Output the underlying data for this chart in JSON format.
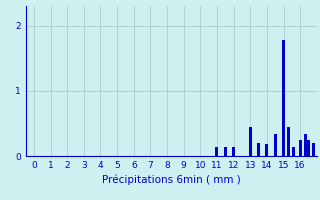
{
  "xlabel": "Précipitations 6min ( mm )",
  "background_color": "#cff0f0",
  "bar_color": "#0000cc",
  "grid_color": "#aacccc",
  "xlim": [
    -0.5,
    17.0
  ],
  "ylim": [
    0,
    2.3
  ],
  "yticks": [
    0,
    1,
    2
  ],
  "xticks": [
    0,
    1,
    2,
    3,
    4,
    5,
    6,
    7,
    8,
    9,
    10,
    11,
    12,
    13,
    14,
    15,
    16
  ],
  "bars_x": [
    11.0,
    11.5,
    12.0,
    12.5,
    13.0,
    13.5,
    14.0,
    14.5,
    15.0,
    15.3,
    15.6,
    15.9,
    16.0,
    16.3,
    16.5,
    16.8
  ],
  "bars_h": [
    0.14,
    0.14,
    0.14,
    0.0,
    0.44,
    0.2,
    0.18,
    0.33,
    1.78,
    0.44,
    0.14,
    0.0,
    0.24,
    0.33,
    0.24,
    0.2
  ],
  "bar_width": 0.18
}
